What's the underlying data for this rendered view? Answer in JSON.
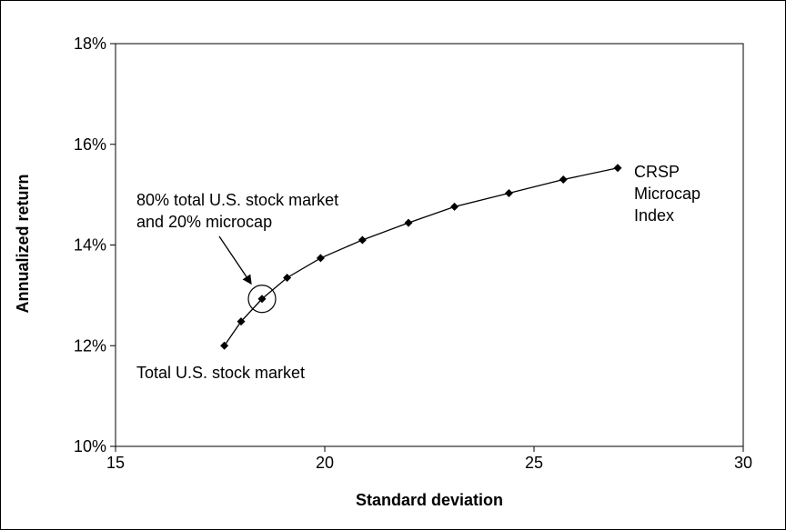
{
  "chart_data": {
    "type": "line",
    "xlabel": "Standard deviation",
    "ylabel": "Annualized return",
    "xlim": [
      15,
      30
    ],
    "ylim": [
      10,
      18
    ],
    "x_ticks": [
      "15",
      "20",
      "25",
      "30"
    ],
    "y_ticks": [
      "10%",
      "12%",
      "14%",
      "16%",
      "18%"
    ],
    "series": [
      {
        "x": [
          17.6,
          18.0,
          18.5,
          19.1,
          19.9,
          20.9,
          22.0,
          23.1,
          24.4,
          25.7,
          27.0
        ],
        "y": [
          12.0,
          12.48,
          12.93,
          13.35,
          13.74,
          14.1,
          14.44,
          14.76,
          15.03,
          15.3,
          15.53
        ],
        "color": "#000000",
        "marker": "diamond"
      }
    ],
    "grid": false,
    "highlight": {
      "x": 18.5,
      "y": 12.93
    },
    "annotations": {
      "start": "Total U.S. stock market",
      "end_line1": "CRSP",
      "end_line2": "Microcap",
      "end_line3": "Index",
      "mix_line1": "80% total U.S. stock market",
      "mix_line2": "and 20% microcap"
    }
  }
}
